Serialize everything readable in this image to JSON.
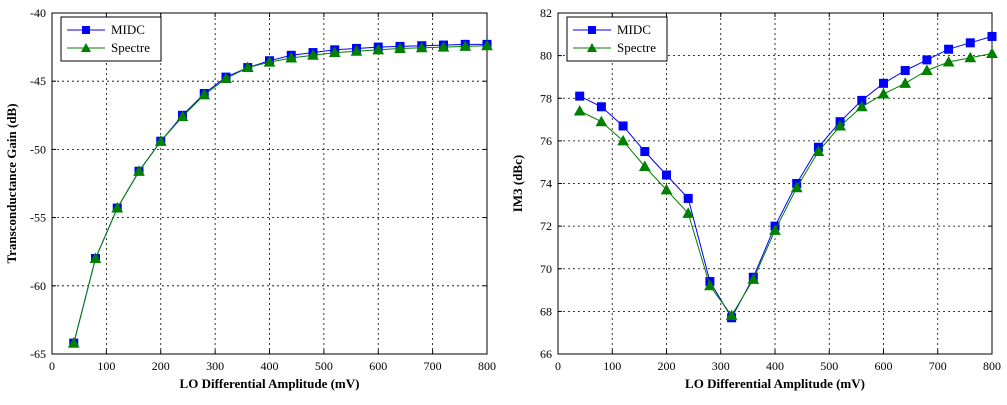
{
  "chart_data": [
    {
      "type": "line",
      "title": "",
      "xlabel": "LO Differential Amplitude (mV)",
      "ylabel": "Transconductance Gain (dB)",
      "xlim": [
        0,
        800
      ],
      "ylim": [
        -65,
        -40
      ],
      "xticks": [
        "0",
        "100",
        "200",
        "300",
        "400",
        "500",
        "600",
        "700",
        "800"
      ],
      "yticks": [
        "-40",
        "-45",
        "-50",
        "-55",
        "-60",
        "-65"
      ],
      "grid": true,
      "legend": "top-left",
      "x": [
        40,
        80,
        120,
        160,
        200,
        240,
        280,
        320,
        360,
        400,
        440,
        480,
        520,
        560,
        600,
        640,
        680,
        720,
        760,
        800
      ],
      "series": [
        {
          "name": "MIDC",
          "color": "#0000ff",
          "marker": "square",
          "values": [
            -64.2,
            -58.0,
            -54.3,
            -51.6,
            -49.4,
            -47.5,
            -45.9,
            -44.7,
            -44.0,
            -43.5,
            -43.1,
            -42.9,
            -42.7,
            -42.6,
            -42.5,
            -42.45,
            -42.4,
            -42.35,
            -42.3,
            -42.3
          ]
        },
        {
          "name": "Spectre",
          "color": "#008000",
          "marker": "triangle",
          "values": [
            -64.2,
            -58.0,
            -54.3,
            -51.6,
            -49.4,
            -47.6,
            -46.0,
            -44.8,
            -44.0,
            -43.6,
            -43.3,
            -43.1,
            -42.9,
            -42.8,
            -42.7,
            -42.6,
            -42.55,
            -42.5,
            -42.45,
            -42.4
          ]
        }
      ]
    },
    {
      "type": "line",
      "title": "",
      "xlabel": "LO Differential Amplitude (mV)",
      "ylabel": "IM3 (dBc)",
      "xlim": [
        0,
        800
      ],
      "ylim": [
        66,
        82
      ],
      "xticks": [
        "0",
        "100",
        "200",
        "300",
        "400",
        "500",
        "600",
        "700",
        "800"
      ],
      "yticks": [
        "82",
        "80",
        "78",
        "76",
        "74",
        "72",
        "70",
        "68",
        "66"
      ],
      "grid": true,
      "legend": "top-left",
      "x": [
        40,
        80,
        120,
        160,
        200,
        240,
        280,
        320,
        360,
        400,
        440,
        480,
        520,
        560,
        600,
        640,
        680,
        720,
        760,
        800
      ],
      "series": [
        {
          "name": "MIDC",
          "color": "#0000ff",
          "marker": "square",
          "values": [
            78.1,
            77.6,
            76.7,
            75.5,
            74.4,
            73.3,
            69.4,
            67.7,
            69.6,
            72.0,
            74.0,
            75.7,
            76.9,
            77.9,
            78.7,
            79.3,
            79.8,
            80.3,
            80.6,
            80.9
          ]
        },
        {
          "name": "Spectre",
          "color": "#008000",
          "marker": "triangle",
          "values": [
            77.4,
            76.9,
            76.0,
            74.8,
            73.7,
            72.6,
            69.2,
            67.8,
            69.5,
            71.8,
            73.8,
            75.5,
            76.7,
            77.6,
            78.2,
            78.7,
            79.3,
            79.7,
            79.9,
            80.1
          ]
        }
      ]
    }
  ]
}
